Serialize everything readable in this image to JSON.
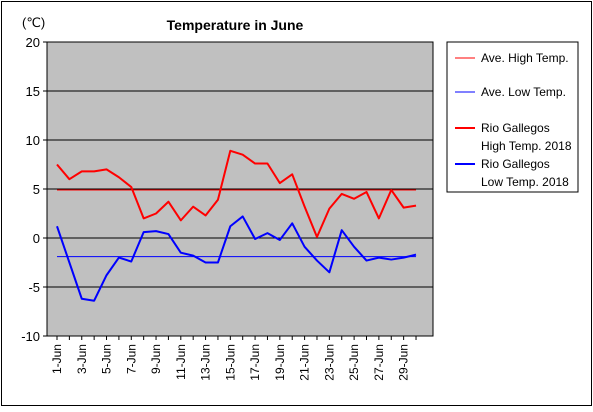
{
  "chart_data": {
    "type": "line",
    "title": "Temperature in June",
    "unit_label": "(℃)",
    "xlabel": "",
    "ylabel": "",
    "ylim": [
      -10,
      20
    ],
    "y_ticks": [
      "20",
      "15",
      "10",
      "5",
      "0",
      "-5",
      "-10"
    ],
    "grid": true,
    "legend_position": "right",
    "categories": [
      "1-Jun",
      "2-Jun",
      "3-Jun",
      "4-Jun",
      "5-Jun",
      "6-Jun",
      "7-Jun",
      "8-Jun",
      "9-Jun",
      "10-Jun",
      "11-Jun",
      "12-Jun",
      "13-Jun",
      "14-Jun",
      "15-Jun",
      "16-Jun",
      "17-Jun",
      "18-Jun",
      "19-Jun",
      "20-Jun",
      "21-Jun",
      "22-Jun",
      "23-Jun",
      "24-Jun",
      "25-Jun",
      "26-Jun",
      "27-Jun",
      "28-Jun",
      "29-Jun",
      "30-Jun"
    ],
    "x_tick_labels": [
      "1-Jun",
      "3-Jun",
      "5-Jun",
      "7-Jun",
      "9-Jun",
      "11-Jun",
      "13-Jun",
      "15-Jun",
      "17-Jun",
      "19-Jun",
      "21-Jun",
      "23-Jun",
      "25-Jun",
      "27-Jun",
      "29-Jun"
    ],
    "series": [
      {
        "name": "Ave. High Temp.",
        "color": "#ff0000",
        "width": 1,
        "values": [
          4.9,
          4.9,
          4.9,
          4.9,
          4.9,
          4.9,
          4.9,
          4.9,
          4.9,
          4.9,
          4.9,
          4.9,
          4.9,
          4.9,
          4.9,
          4.9,
          4.9,
          4.9,
          4.9,
          4.9,
          4.9,
          4.9,
          4.9,
          4.9,
          4.9,
          4.9,
          4.9,
          4.9,
          4.9,
          4.9
        ]
      },
      {
        "name": "Ave. Low Temp.",
        "color": "#0000ff",
        "width": 1,
        "values": [
          -1.9,
          -1.9,
          -1.9,
          -1.9,
          -1.9,
          -1.9,
          -1.9,
          -1.9,
          -1.9,
          -1.9,
          -1.9,
          -1.9,
          -1.9,
          -1.9,
          -1.9,
          -1.9,
          -1.9,
          -1.9,
          -1.9,
          -1.9,
          -1.9,
          -1.9,
          -1.9,
          -1.9,
          -1.9,
          -1.9,
          -1.9,
          -1.9,
          -1.9,
          -1.9
        ]
      },
      {
        "name": "Rio Gallegos High Temp. 2018",
        "name_lines": [
          "Rio Gallegos",
          "High Temp. 2018"
        ],
        "color": "#ff0000",
        "width": 2,
        "values": [
          7.5,
          6.0,
          6.8,
          6.8,
          7.0,
          6.2,
          5.2,
          2.0,
          2.5,
          3.7,
          1.8,
          3.2,
          2.3,
          3.9,
          8.9,
          8.5,
          7.6,
          7.6,
          5.6,
          6.5,
          3.2,
          0.1,
          3.0,
          4.5,
          4.0,
          4.7,
          2.0,
          4.9,
          3.1,
          3.3
        ]
      },
      {
        "name": "Rio Gallegos Low Temp. 2018",
        "name_lines": [
          "Rio Gallegos",
          "Low Temp. 2018"
        ],
        "color": "#0000ff",
        "width": 2,
        "values": [
          1.2,
          -2.5,
          -6.2,
          -6.4,
          -3.8,
          -2.0,
          -2.4,
          0.6,
          0.7,
          0.4,
          -1.5,
          -1.8,
          -2.5,
          -2.5,
          1.2,
          2.2,
          -0.1,
          0.5,
          -0.2,
          1.5,
          -0.9,
          -2.3,
          -3.5,
          0.8,
          -0.9,
          -2.3,
          -2.0,
          -2.2,
          -2.0,
          -1.7
        ]
      }
    ]
  },
  "colors": {
    "plot_bg": "#c0c0c0",
    "grid": "#000000",
    "frame": "#000000"
  }
}
